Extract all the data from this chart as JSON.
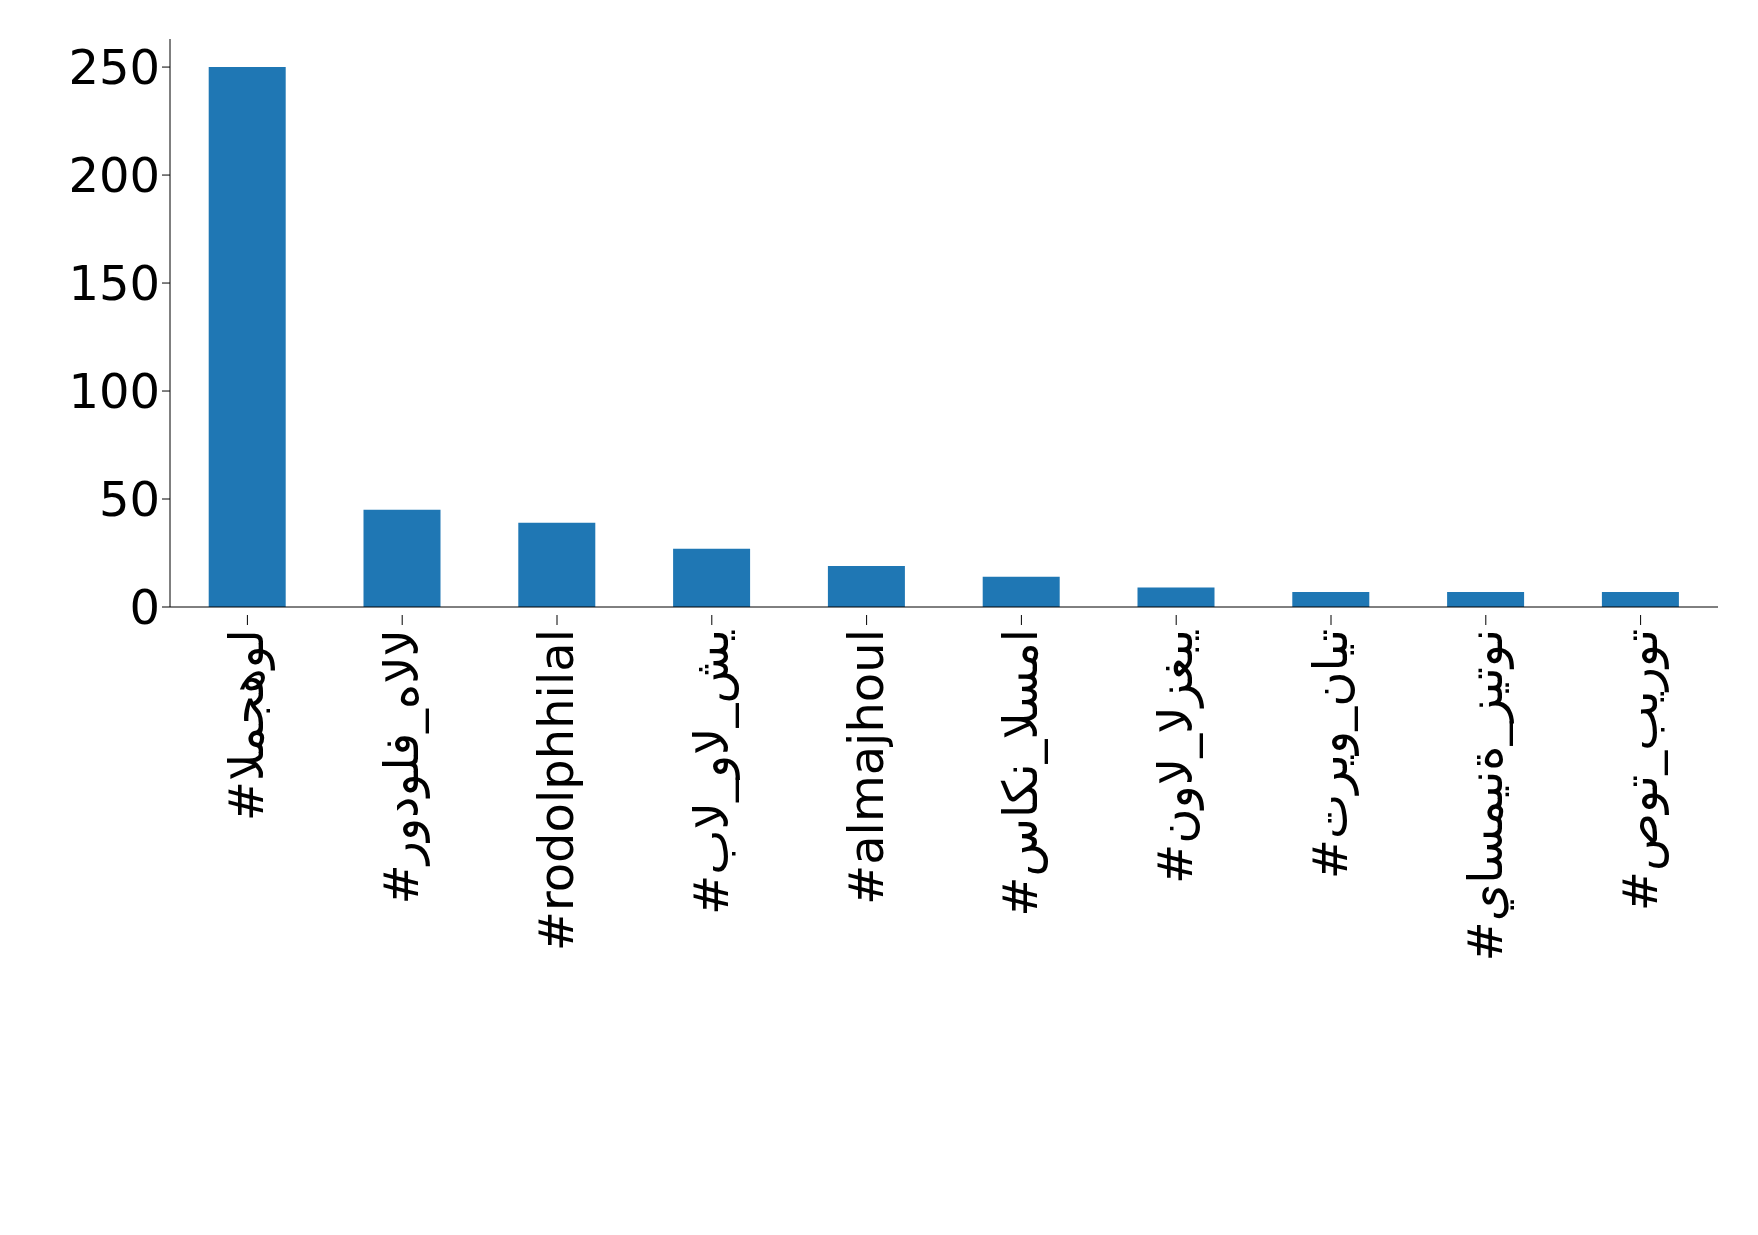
{
  "chart_data": {
    "type": "bar",
    "categories": [
      "#المجهول",
      "#رودولف_هالال",
      "#rodolphhilal",
      "#بال_وال_شي",
      "#almajhoul",
      "#ساكن_السما",
      "#نوال_الزغبي",
      "#تريو_نايت",
      "#ياسمينة_زيتون",
      "#صوت_بيروت"
    ],
    "values": [
      250,
      45,
      39,
      27,
      19,
      14,
      9,
      7,
      7,
      7
    ],
    "color": "#1f77b4",
    "ylim": [
      0,
      263
    ],
    "yticks": [
      0,
      50,
      100,
      150,
      200,
      250
    ],
    "grid": false,
    "legend": false
  }
}
